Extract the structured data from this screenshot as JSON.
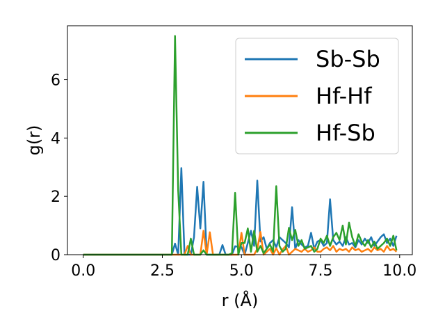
{
  "chart_data": {
    "type": "line",
    "title": "",
    "xlabel": "r (Å)",
    "ylabel": "g(r)",
    "xlim": [
      -0.5,
      10.4
    ],
    "ylim": [
      0,
      7.85
    ],
    "xticks": [
      0.0,
      2.5,
      5.0,
      7.5,
      10.0
    ],
    "xtick_labels": [
      "0.0",
      "2.5",
      "5.0",
      "7.5",
      "10.0"
    ],
    "yticks": [
      0,
      2,
      4,
      6
    ],
    "ytick_labels": [
      "0",
      "2",
      "4",
      "6"
    ],
    "grid": false,
    "legend_position": "top-right",
    "x": [
      0.0,
      0.1,
      0.2,
      0.3,
      0.4,
      0.5,
      0.6,
      0.7,
      0.8,
      0.9,
      1.0,
      1.1,
      1.2,
      1.3,
      1.4,
      1.5,
      1.6,
      1.7,
      1.8,
      1.9,
      2.0,
      2.1,
      2.2,
      2.3,
      2.4,
      2.5,
      2.6,
      2.7,
      2.8,
      2.9,
      3.0,
      3.1,
      3.2,
      3.3,
      3.4,
      3.5,
      3.6,
      3.7,
      3.8,
      3.9,
      4.0,
      4.1,
      4.2,
      4.3,
      4.4,
      4.5,
      4.6,
      4.7,
      4.8,
      4.9,
      5.0,
      5.1,
      5.2,
      5.3,
      5.4,
      5.5,
      5.6,
      5.7,
      5.8,
      5.9,
      6.0,
      6.1,
      6.2,
      6.3,
      6.4,
      6.5,
      6.6,
      6.7,
      6.8,
      6.9,
      7.0,
      7.1,
      7.2,
      7.3,
      7.4,
      7.5,
      7.6,
      7.7,
      7.8,
      7.9,
      8.0,
      8.1,
      8.2,
      8.3,
      8.4,
      8.5,
      8.6,
      8.7,
      8.8,
      8.9,
      9.0,
      9.1,
      9.2,
      9.3,
      9.4,
      9.5,
      9.6,
      9.7,
      9.8,
      9.9
    ],
    "series": [
      {
        "name": "Sb-Sb",
        "color": "#1f77b4",
        "values": [
          0,
          0,
          0,
          0,
          0,
          0,
          0,
          0,
          0,
          0,
          0,
          0,
          0,
          0,
          0,
          0,
          0,
          0,
          0,
          0,
          0,
          0,
          0,
          0,
          0,
          0,
          0,
          0,
          0,
          0.38,
          0,
          2.97,
          0,
          0,
          0,
          0.6,
          2.33,
          0.9,
          2.5,
          0,
          0,
          0,
          0,
          0,
          0.33,
          0,
          0,
          0,
          0.29,
          0.27,
          0.26,
          0,
          0.4,
          0.82,
          0.3,
          2.54,
          0.45,
          0.6,
          0.2,
          0.4,
          0.5,
          0.25,
          0.6,
          0.5,
          0.4,
          0.25,
          1.63,
          0.2,
          0.5,
          0.35,
          0.25,
          0.3,
          0.75,
          0.2,
          0.45,
          0.5,
          0.3,
          0.4,
          1.9,
          0.5,
          0.35,
          0.45,
          0.3,
          0.6,
          0.35,
          0.4,
          0.25,
          0.5,
          0.35,
          0.55,
          0.4,
          0.6,
          0.3,
          0.45,
          0.6,
          0.7,
          0.4,
          0.55,
          0.3,
          0.65
        ]
      },
      {
        "name": "Hf-Hf",
        "color": "#ff7f0e",
        "values": [
          0,
          0,
          0,
          0,
          0,
          0,
          0,
          0,
          0,
          0,
          0,
          0,
          0,
          0,
          0,
          0,
          0,
          0,
          0,
          0,
          0,
          0,
          0,
          0,
          0,
          0,
          0,
          0,
          0,
          0,
          0,
          0,
          0,
          0.3,
          0,
          0,
          0,
          0,
          0.82,
          0,
          0.77,
          0,
          0,
          0,
          0,
          0,
          0,
          0,
          0,
          0,
          0.75,
          0,
          0,
          0,
          0,
          0.2,
          0.78,
          0,
          0.1,
          0.2,
          0,
          0.22,
          0,
          0.18,
          0.3,
          0,
          0.1,
          0.2,
          0.15,
          0.1,
          0.2,
          0.1,
          0.15,
          0.25,
          0.1,
          0.1,
          0.2,
          0.25,
          0.15,
          0.3,
          0.1,
          0.2,
          0.15,
          0.2,
          0.1,
          0.25,
          0.15,
          0.2,
          0.1,
          0.15,
          0.2,
          0.1,
          0.25,
          0.15,
          0.2,
          0.1,
          0.3,
          0.15,
          0.2,
          0.1
        ]
      },
      {
        "name": "Hf-Sb",
        "color": "#2ca02c",
        "values": [
          0,
          0,
          0,
          0,
          0,
          0,
          0,
          0,
          0,
          0,
          0,
          0,
          0,
          0,
          0,
          0,
          0,
          0,
          0,
          0,
          0,
          0,
          0,
          0,
          0,
          0,
          0,
          0,
          0,
          7.5,
          2.2,
          0,
          0,
          0,
          0.55,
          0,
          0,
          0,
          0.15,
          0,
          0,
          0,
          0,
          0,
          0,
          0,
          0,
          0.05,
          2.12,
          0,
          0.4,
          0.4,
          0.9,
          0.1,
          0.82,
          0.1,
          0.3,
          0.05,
          0.2,
          0.35,
          0.1,
          2.35,
          0.3,
          0.1,
          0.2,
          0.92,
          0.5,
          0.85,
          0.3,
          0.5,
          0.2,
          0.25,
          0.3,
          0.1,
          0.2,
          0.55,
          0.4,
          0.65,
          0.3,
          0.6,
          0.75,
          0.5,
          1.0,
          0.35,
          1.1,
          0.6,
          0.3,
          0.7,
          0.45,
          0.3,
          0.5,
          0.25,
          0.45,
          0.2,
          0.3,
          0.4,
          0.55,
          0.3,
          0.65,
          0.15
        ]
      }
    ]
  }
}
